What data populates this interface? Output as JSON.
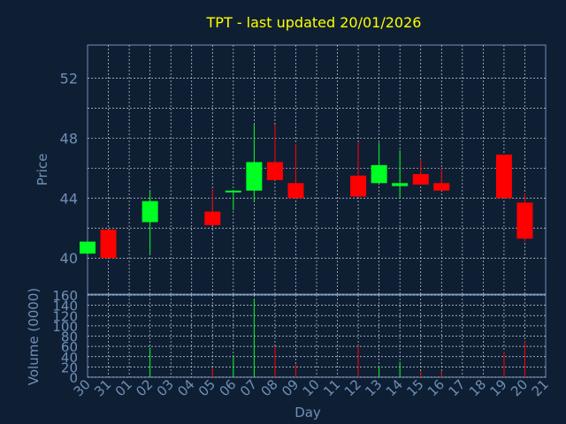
{
  "colors": {
    "background": "#0f1f33",
    "title": "#ffff00",
    "axis_text": "#6f8fb8",
    "axis_line": "#6f8fb8",
    "grid": "#c9d4e2",
    "up": "#00ff22",
    "down": "#ff0000"
  },
  "chart_data": {
    "type": "candlestick",
    "title": "TPT - last updated 20/01/2026",
    "xlabel": "Day",
    "grid": true,
    "x_ticks": [
      "30",
      "31",
      "01",
      "02",
      "03",
      "04",
      "05",
      "06",
      "07",
      "08",
      "09",
      "10",
      "11",
      "12",
      "13",
      "14",
      "15",
      "16",
      "17",
      "18",
      "19",
      "20",
      "21"
    ],
    "price": {
      "ylabel": "Price",
      "ylim": [
        37.6,
        54.2
      ],
      "y_ticks": [
        "40",
        "44",
        "48",
        "52"
      ],
      "y_tick_values": [
        40,
        44,
        48,
        52
      ],
      "minor_grid_values": [
        42,
        46,
        50
      ],
      "candles": [
        {
          "day": "30",
          "open": 40.3,
          "high": 41.1,
          "low": 40.3,
          "close": 41.1
        },
        {
          "day": "31",
          "open": 41.9,
          "high": 41.9,
          "low": 40.0,
          "close": 40.0
        },
        {
          "day": "02",
          "open": 42.4,
          "high": 44.5,
          "low": 40.3,
          "close": 43.8
        },
        {
          "day": "05",
          "open": 43.1,
          "high": 44.6,
          "low": 42.2,
          "close": 42.2
        },
        {
          "day": "06",
          "open": 44.4,
          "high": 44.5,
          "low": 43.2,
          "close": 44.5
        },
        {
          "day": "07",
          "open": 44.5,
          "high": 48.9,
          "low": 43.8,
          "close": 46.4
        },
        {
          "day": "08",
          "open": 46.4,
          "high": 48.9,
          "low": 45.2,
          "close": 45.2
        },
        {
          "day": "09",
          "open": 45.0,
          "high": 47.6,
          "low": 44.0,
          "close": 44.0
        },
        {
          "day": "12",
          "open": 45.5,
          "high": 47.7,
          "low": 44.1,
          "close": 44.1
        },
        {
          "day": "13",
          "open": 45.0,
          "high": 47.7,
          "low": 45.0,
          "close": 46.2
        },
        {
          "day": "14",
          "open": 44.8,
          "high": 47.2,
          "low": 44.0,
          "close": 45.0
        },
        {
          "day": "15",
          "open": 45.6,
          "high": 46.6,
          "low": 44.9,
          "close": 44.9
        },
        {
          "day": "16",
          "open": 45.0,
          "high": 46.0,
          "low": 44.5,
          "close": 44.5
        },
        {
          "day": "19",
          "open": 46.9,
          "high": 46.9,
          "low": 44.0,
          "close": 44.0
        },
        {
          "day": "20",
          "open": 43.7,
          "high": 44.3,
          "low": 41.1,
          "close": 41.3
        }
      ]
    },
    "volume": {
      "ylabel": "Volume (0000)",
      "ylim": [
        0,
        160
      ],
      "y_ticks": [
        "0",
        "20",
        "40",
        "60",
        "80",
        "100",
        "120",
        "140",
        "160"
      ],
      "y_tick_values": [
        0,
        20,
        40,
        60,
        80,
        100,
        120,
        140,
        160
      ],
      "bars": [
        {
          "day": "02",
          "value": 58,
          "direction": "up"
        },
        {
          "day": "05",
          "value": 18,
          "direction": "down"
        },
        {
          "day": "06",
          "value": 42,
          "direction": "up"
        },
        {
          "day": "07",
          "value": 152,
          "direction": "up"
        },
        {
          "day": "08",
          "value": 60,
          "direction": "down"
        },
        {
          "day": "09",
          "value": 25,
          "direction": "down"
        },
        {
          "day": "12",
          "value": 62,
          "direction": "down"
        },
        {
          "day": "13",
          "value": 22,
          "direction": "up"
        },
        {
          "day": "14",
          "value": 30,
          "direction": "up"
        },
        {
          "day": "15",
          "value": 12,
          "direction": "down"
        },
        {
          "day": "16",
          "value": 12,
          "direction": "down"
        },
        {
          "day": "19",
          "value": 50,
          "direction": "down"
        },
        {
          "day": "20",
          "value": 70,
          "direction": "down"
        }
      ]
    }
  }
}
